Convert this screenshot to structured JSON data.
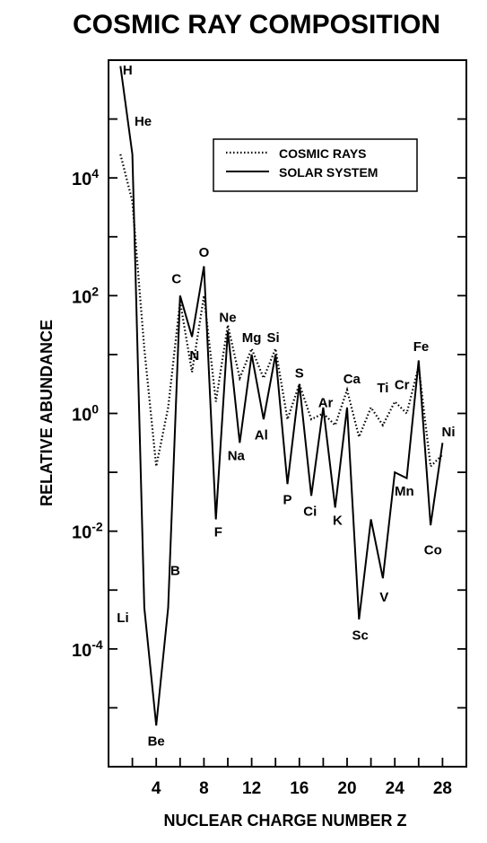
{
  "chart_data": {
    "type": "line",
    "title": "COSMIC RAY COMPOSITION",
    "xlabel": "NUCLEAR CHARGE NUMBER Z",
    "ylabel": "RELATIVE ABUNDANCE",
    "xlim": [
      0,
      30
    ],
    "ylim": [
      -6,
      6
    ],
    "y_scale": "log10",
    "x_ticks": [
      4,
      8,
      12,
      16,
      20,
      24,
      28
    ],
    "y_ticks": [
      {
        "value": 4,
        "base": "10",
        "exp": "4"
      },
      {
        "value": 2,
        "base": "10",
        "exp": "2"
      },
      {
        "value": 0,
        "base": "10",
        "exp": "0"
      },
      {
        "value": -2,
        "base": "10",
        "exp": "-2"
      },
      {
        "value": -4,
        "base": "10",
        "exp": "-4"
      }
    ],
    "legend_position": "top-right",
    "series": [
      {
        "name": "COSMIC RAYS",
        "style": "dotted",
        "x": [
          1,
          2,
          3,
          4,
          5,
          6,
          7,
          8,
          9,
          10,
          11,
          12,
          13,
          14,
          15,
          16,
          17,
          18,
          19,
          20,
          21,
          22,
          23,
          24,
          25,
          26,
          27,
          28
        ],
        "y": [
          4.4,
          3.6,
          1.1,
          -0.9,
          0.1,
          1.9,
          0.7,
          2.0,
          0.2,
          1.5,
          0.6,
          1.1,
          0.6,
          1.1,
          -0.1,
          0.5,
          -0.1,
          0.0,
          -0.2,
          0.4,
          -0.4,
          0.1,
          -0.2,
          0.2,
          0.0,
          0.8,
          -0.9,
          -0.7
        ]
      },
      {
        "name": "SOLAR SYSTEM",
        "style": "solid",
        "x": [
          1,
          2,
          3,
          4,
          5,
          6,
          7,
          8,
          9,
          10,
          11,
          12,
          13,
          14,
          15,
          16,
          17,
          18,
          19,
          20,
          21,
          22,
          23,
          24,
          25,
          26,
          27,
          28
        ],
        "y": [
          5.9,
          4.4,
          -3.3,
          -5.3,
          -3.3,
          2.0,
          1.3,
          2.5,
          -1.8,
          1.4,
          -0.5,
          1.0,
          -0.1,
          1.0,
          -1.2,
          0.5,
          -1.4,
          0.1,
          -1.6,
          0.1,
          -3.5,
          -1.8,
          -2.8,
          -1.0,
          -1.1,
          0.9,
          -1.9,
          -0.5
        ]
      }
    ],
    "point_labels": [
      {
        "text": "H",
        "x": 1.6,
        "y": 5.85
      },
      {
        "text": "He",
        "x": 2.9,
        "y": 4.98
      },
      {
        "text": "Li",
        "x": 1.2,
        "y": -3.45
      },
      {
        "text": "Be",
        "x": 4.0,
        "y": -5.55
      },
      {
        "text": "B",
        "x": 5.6,
        "y": -2.65
      },
      {
        "text": "C",
        "x": 5.7,
        "y": 2.3
      },
      {
        "text": "N",
        "x": 7.2,
        "y": 1.0
      },
      {
        "text": "O",
        "x": 8.0,
        "y": 2.75
      },
      {
        "text": "F",
        "x": 9.2,
        "y": -2.0
      },
      {
        "text": "Ne",
        "x": 10.0,
        "y": 1.65
      },
      {
        "text": "Na",
        "x": 10.7,
        "y": -0.7
      },
      {
        "text": "Mg",
        "x": 12.0,
        "y": 1.3
      },
      {
        "text": "Al",
        "x": 12.8,
        "y": -0.35
      },
      {
        "text": "Si",
        "x": 13.8,
        "y": 1.3
      },
      {
        "text": "P",
        "x": 15.0,
        "y": -1.45
      },
      {
        "text": "S",
        "x": 16.0,
        "y": 0.7
      },
      {
        "text": "Ci",
        "x": 16.9,
        "y": -1.65
      },
      {
        "text": "Ar",
        "x": 18.2,
        "y": 0.2
      },
      {
        "text": "K",
        "x": 19.2,
        "y": -1.8
      },
      {
        "text": "Ca",
        "x": 20.4,
        "y": 0.6
      },
      {
        "text": "Sc",
        "x": 21.1,
        "y": -3.75
      },
      {
        "text": "Ti",
        "x": 23.0,
        "y": 0.45
      },
      {
        "text": "V",
        "x": 23.1,
        "y": -3.1
      },
      {
        "text": "Cr",
        "x": 24.6,
        "y": 0.5
      },
      {
        "text": "Mn",
        "x": 24.8,
        "y": -1.3
      },
      {
        "text": "Fe",
        "x": 26.2,
        "y": 1.15
      },
      {
        "text": "Co",
        "x": 27.2,
        "y": -2.3
      },
      {
        "text": "Ni",
        "x": 28.5,
        "y": -0.3
      }
    ]
  }
}
